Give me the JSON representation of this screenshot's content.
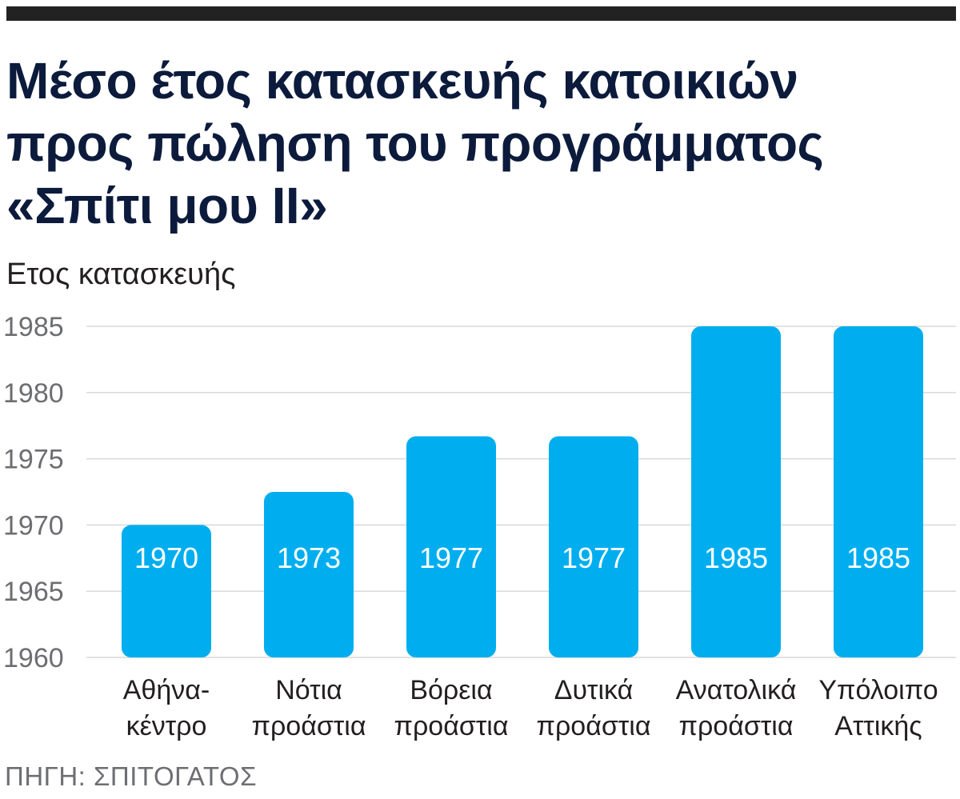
{
  "header": {
    "title_lines": [
      "Μέσο έτος κατασκευής κατοικιών",
      "προς πώληση του προγράμματος",
      "«Σπίτι μου ΙΙ»"
    ]
  },
  "colors": {
    "bar": "#00aeef",
    "title": "#0c1b3c",
    "grid": "#d9d9d9"
  },
  "source": "ΠΗΓΗ: ΣΠΙΤΟΓΑΤΟΣ",
  "chart_data": {
    "type": "bar",
    "title": "Μέσο έτος κατασκευής κατοικιών προς πώληση του προγράμματος «Σπίτι μου ΙΙ»",
    "ylabel": "Ετος κατασκευής",
    "xlabel": "",
    "ylim": [
      1960,
      1985
    ],
    "yticks": [
      1960,
      1965,
      1970,
      1975,
      1980,
      1985
    ],
    "categories": [
      [
        "Αθήνα-",
        "κέντρο"
      ],
      [
        "Νότια",
        "προάστια"
      ],
      [
        "Βόρεια",
        "προάστια"
      ],
      [
        "Δυτικά",
        "προάστια"
      ],
      [
        "Ανατολικά",
        "προάστια"
      ],
      [
        "Υπόλοιπο",
        "Αττικής"
      ]
    ],
    "values": [
      1970,
      1972.5,
      1976.7,
      1976.7,
      1985,
      1985
    ],
    "data_labels": [
      "1970",
      "1973",
      "1977",
      "1977",
      "1985",
      "1985"
    ],
    "grid": true
  }
}
